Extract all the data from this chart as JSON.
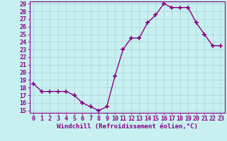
{
  "x": [
    0,
    1,
    2,
    3,
    4,
    5,
    6,
    7,
    8,
    9,
    10,
    11,
    12,
    13,
    14,
    15,
    16,
    17,
    18,
    19,
    20,
    21,
    22,
    23
  ],
  "y": [
    18.5,
    17.5,
    17.5,
    17.5,
    17.5,
    17.0,
    16.0,
    15.5,
    15.0,
    15.5,
    19.5,
    23.0,
    24.5,
    24.5,
    26.5,
    27.5,
    29.0,
    28.5,
    28.5,
    28.5,
    26.5,
    25.0,
    23.5,
    23.5
  ],
  "line_color": "#880088",
  "marker": "+",
  "marker_size": 4,
  "bg_color": "#c8f0f0",
  "grid_color": "#b0d8d8",
  "xlabel": "Windchill (Refroidissement éolien,°C)",
  "ylabel_ticks": [
    15,
    16,
    17,
    18,
    19,
    20,
    21,
    22,
    23,
    24,
    25,
    26,
    27,
    28,
    29
  ],
  "ylim": [
    14.7,
    29.3
  ],
  "xlim": [
    -0.5,
    23.5
  ],
  "tick_color": "#880088",
  "spine_color": "#880088",
  "xlabel_fontsize": 6.5,
  "tick_fontsize": 6.0,
  "linewidth": 1.0,
  "marker_linewidth": 1.2
}
